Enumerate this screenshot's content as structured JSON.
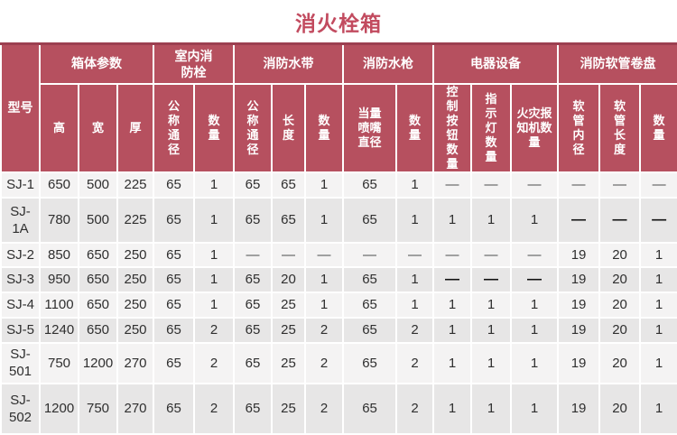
{
  "title": "消火栓箱",
  "colors": {
    "header_bg": "#b6505f",
    "header_top_line": "#9c3f50",
    "title_text": "#c24b5f",
    "row_light": "#f4f3f3",
    "row_dark": "#e7e6e6",
    "body_text": "#2f2f2f"
  },
  "table": {
    "model_header": "型号",
    "groups": [
      {
        "label": "箱体参数",
        "span": 3
      },
      {
        "label": "室内消防栓",
        "span": 2
      },
      {
        "label": "消防水带",
        "span": 3
      },
      {
        "label": "消防水枪",
        "span": 2
      },
      {
        "label": "电器设备",
        "span": 3
      },
      {
        "label": "消防软管卷盘",
        "span": 3
      }
    ],
    "subheaders": [
      "高",
      "宽",
      "厚",
      "公称通径",
      "数量",
      "公称通径",
      "长度",
      "数量",
      "当量喷嘴直径",
      "数量",
      "控制按钮数量",
      "指示灯数量",
      "火灾报知机数量",
      "软管内径",
      "软管长度",
      "数量"
    ],
    "rows": [
      {
        "model": "SJ-1",
        "cells": [
          "650",
          "500",
          "225",
          "65",
          "1",
          "65",
          "65",
          "1",
          "65",
          "1",
          "—",
          "—",
          "—",
          "—",
          "—",
          "—"
        ]
      },
      {
        "model": "SJ-1A",
        "cells": [
          "780",
          "500",
          "225",
          "65",
          "1",
          "65",
          "65",
          "1",
          "65",
          "1",
          "1",
          "1",
          "1",
          {
            "v": "—",
            "bold": true
          },
          {
            "v": "—",
            "bold": true
          },
          {
            "v": "—",
            "bold": true
          }
        ]
      },
      {
        "model": "SJ-2",
        "cells": [
          "850",
          "650",
          "250",
          "65",
          "1",
          "—",
          "—",
          "—",
          "—",
          "—",
          "—",
          "—",
          "—",
          "19",
          "20",
          "1"
        ]
      },
      {
        "model": "SJ-3",
        "cells": [
          "950",
          "650",
          "250",
          "65",
          "1",
          "65",
          "20",
          "1",
          "65",
          "1",
          {
            "v": "—",
            "bold": true
          },
          {
            "v": "—",
            "bold": true
          },
          {
            "v": "—",
            "bold": true
          },
          "19",
          "20",
          "1"
        ]
      },
      {
        "model": "SJ-4",
        "cells": [
          "1100",
          "650",
          "250",
          "65",
          "1",
          "65",
          "25",
          "1",
          "65",
          "1",
          "1",
          "1",
          "1",
          "19",
          "20",
          "1"
        ]
      },
      {
        "model": "SJ-5",
        "cells": [
          "1240",
          "650",
          "250",
          "65",
          "2",
          "65",
          "25",
          "2",
          "65",
          "2",
          "1",
          "1",
          "1",
          "19",
          "20",
          "1"
        ]
      },
      {
        "model": "SJ-501",
        "cells": [
          "750",
          "1200",
          "270",
          "65",
          "2",
          "65",
          "25",
          "2",
          "65",
          "2",
          "1",
          "1",
          "1",
          "19",
          "20",
          "1"
        ]
      },
      {
        "model": "SJ-502",
        "cells": [
          "1200",
          "750",
          "270",
          "65",
          "2",
          "65",
          "25",
          "2",
          "65",
          "2",
          "1",
          "1",
          "1",
          "19",
          "20",
          "1"
        ]
      }
    ]
  }
}
